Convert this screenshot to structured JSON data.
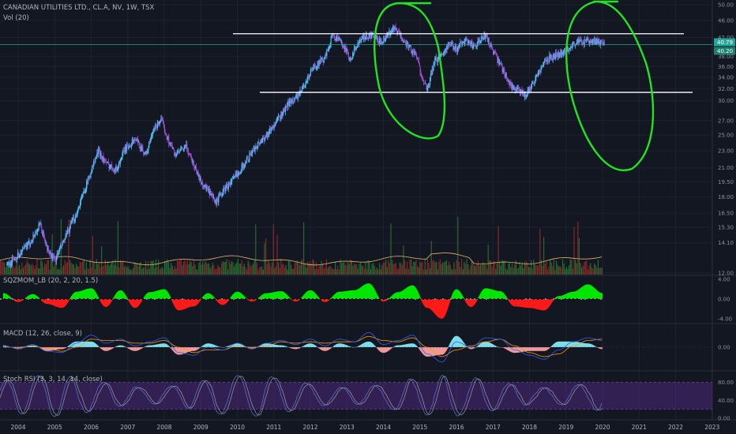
{
  "header": {
    "symbol_line": "CANADIAN UTILITIES LTD., CL.A, NV, 1W, TSX",
    "volume_label": "Vol (20)"
  },
  "price_badges": {
    "current": "40.79",
    "line_value": "40.20"
  },
  "colors": {
    "background": "#131722",
    "candle_up": "#4fc3f7",
    "candle_down": "#9c4dcc",
    "annotation_green": "#22e322",
    "line_white": "#ffffff",
    "teal_line": "#26a69a",
    "volume_up": "#2e7d32",
    "volume_down": "#a52a2a",
    "volume_ma": "#e0b46a",
    "squeeze_up": "#00e600",
    "squeeze_down": "#ff1a1a",
    "macd_line": "#2962ff",
    "signal_line": "#ff9800",
    "stoch_k": "#5b7bd5",
    "stoch_d": "#9e9e9e",
    "stoch_band": "#5c2d91"
  },
  "chart_data": [
    {
      "id": "price",
      "type": "candlestick",
      "title": "CANADIAN UTILITIES LTD., CL.A, NV, 1W, TSX",
      "x_axis_ticks": [
        "2004",
        "2005",
        "2006",
        "2007",
        "2008",
        "2009",
        "2010",
        "2011",
        "2012",
        "2013",
        "2014",
        "2015",
        "2016",
        "2017",
        "2018",
        "2019",
        "2020",
        "2021",
        "2022",
        "2023"
      ],
      "y_axis_ticks": [
        12.0,
        14.1,
        15.3,
        16.5,
        18.0,
        19.5,
        21.0,
        23.0,
        25.0,
        27.0,
        30.0,
        32.0,
        34.0,
        36.0,
        38.0,
        42.0,
        46.0,
        50.0
      ],
      "y_scale": "log",
      "x": [
        2003.7,
        2004.0,
        2004.3,
        2004.6,
        2004.8,
        2005.0,
        2005.3,
        2005.6,
        2005.9,
        2006.2,
        2006.4,
        2006.7,
        2006.9,
        2007.2,
        2007.5,
        2007.7,
        2007.9,
        2008.1,
        2008.3,
        2008.6,
        2008.8,
        2009.0,
        2009.2,
        2009.4,
        2009.6,
        2009.9,
        2010.2,
        2010.5,
        2010.8,
        2011.1,
        2011.4,
        2011.7,
        2011.9,
        2012.1,
        2012.4,
        2012.6,
        2012.9,
        2013.1,
        2013.3,
        2013.5,
        2013.7,
        2013.9,
        2014.1,
        2014.3,
        2014.6,
        2014.9,
        2015.0,
        2015.2,
        2015.4,
        2015.6,
        2015.8,
        2016.0,
        2016.2,
        2016.5,
        2016.8,
        2017.1,
        2017.3,
        2017.5,
        2017.7,
        2017.9,
        2018.1,
        2018.3,
        2018.5,
        2018.8,
        2019.0,
        2019.2,
        2019.4,
        2019.6,
        2019.9,
        2020.05
      ],
      "close": [
        12.5,
        13.2,
        14.0,
        15.5,
        13.6,
        12.8,
        14.5,
        16.5,
        19.5,
        23.0,
        21.5,
        20.8,
        23.0,
        24.5,
        22.5,
        25.5,
        27.2,
        24.5,
        22.5,
        23.5,
        21.5,
        19.5,
        18.6,
        17.4,
        18.5,
        19.8,
        21.5,
        23.5,
        25.0,
        27.0,
        29.5,
        31.0,
        33.5,
        36.0,
        37.5,
        42.5,
        40.5,
        37.0,
        41.0,
        42.0,
        42.5,
        41.0,
        42.5,
        44.0,
        41.0,
        38.0,
        35.5,
        31.5,
        37.0,
        38.5,
        40.5,
        39.5,
        41.5,
        40.0,
        42.5,
        37.5,
        35.0,
        32.5,
        31.5,
        31.0,
        33.0,
        35.5,
        37.5,
        38.5,
        39.0,
        40.8,
        41.0,
        41.0,
        41.0,
        41.0
      ],
      "horizontal_lines": [
        42.5,
        31.5
      ],
      "current_price": 40.79
    },
    {
      "id": "volume",
      "type": "bar",
      "title": "Vol (20)",
      "note": "volume histogram with 20-period moving average overlay; no values printed"
    },
    {
      "id": "squeeze",
      "type": "area",
      "title": "SQZMOM_LB (20, 2, 20, 1.5)",
      "y_axis_ticks": [
        4.0,
        0.0,
        -4.0
      ],
      "x": [
        2003.6,
        2004.0,
        2004.4,
        2004.8,
        2005.2,
        2005.6,
        2006.0,
        2006.4,
        2006.8,
        2007.2,
        2007.6,
        2008.0,
        2008.4,
        2008.8,
        2009.2,
        2009.6,
        2010.0,
        2010.4,
        2010.8,
        2011.2,
        2011.6,
        2012.0,
        2012.4,
        2012.8,
        2013.2,
        2013.6,
        2014.0,
        2014.4,
        2014.8,
        2015.2,
        2015.6,
        2016.0,
        2016.4,
        2016.8,
        2017.2,
        2017.6,
        2018.0,
        2018.4,
        2018.8,
        2019.2,
        2019.6,
        2020.0
      ],
      "values": [
        1.2,
        -0.6,
        1.0,
        -1.0,
        -1.8,
        1.5,
        2.2,
        -1.6,
        1.8,
        -1.8,
        1.4,
        2.0,
        -2.3,
        -1.5,
        1.2,
        -1.2,
        1.5,
        -0.5,
        1.2,
        1.6,
        -0.5,
        1.8,
        -0.6,
        1.5,
        1.8,
        3.2,
        -0.5,
        1.4,
        2.8,
        -1.8,
        -4.0,
        2.0,
        -1.6,
        2.2,
        1.6,
        -1.5,
        -1.8,
        -2.3,
        0.6,
        1.5,
        3.0,
        1.2
      ]
    },
    {
      "id": "macd",
      "type": "line",
      "title": "MACD (12, 26, close, 9)",
      "y_axis_ticks": [
        0.0
      ],
      "x": [
        2003.6,
        2004.0,
        2004.4,
        2004.8,
        2005.2,
        2005.6,
        2006.0,
        2006.4,
        2006.8,
        2007.2,
        2007.6,
        2008.0,
        2008.4,
        2008.8,
        2009.2,
        2009.6,
        2010.0,
        2010.4,
        2010.8,
        2011.2,
        2011.6,
        2012.0,
        2012.4,
        2012.8,
        2013.2,
        2013.6,
        2014.0,
        2014.4,
        2014.8,
        2015.2,
        2015.6,
        2016.0,
        2016.4,
        2016.8,
        2017.2,
        2017.6,
        2018.0,
        2018.4,
        2018.8,
        2019.2,
        2019.6,
        2020.0
      ],
      "series": [
        {
          "name": "MACD",
          "values": [
            0.1,
            -0.1,
            0.2,
            -0.3,
            -0.4,
            0.3,
            0.9,
            0.3,
            0.6,
            0.1,
            0.4,
            0.7,
            -0.4,
            -0.6,
            0.0,
            -0.2,
            0.3,
            -0.1,
            0.3,
            0.5,
            0.2,
            0.6,
            0.1,
            0.6,
            0.4,
            1.1,
            0.2,
            0.5,
            0.9,
            -0.5,
            -1.1,
            0.4,
            0.0,
            0.7,
            0.6,
            -0.2,
            -0.6,
            -0.9,
            -0.2,
            0.4,
            0.7,
            0.5
          ]
        },
        {
          "name": "Signal",
          "values": [
            0.0,
            0.0,
            0.1,
            -0.1,
            -0.3,
            0.0,
            0.6,
            0.5,
            0.5,
            0.3,
            0.3,
            0.5,
            0.0,
            -0.4,
            -0.2,
            -0.2,
            0.1,
            0.0,
            0.1,
            0.4,
            0.3,
            0.4,
            0.3,
            0.4,
            0.4,
            0.8,
            0.5,
            0.4,
            0.7,
            0.0,
            -0.7,
            -0.2,
            0.1,
            0.4,
            0.6,
            0.1,
            -0.4,
            -0.7,
            -0.5,
            0.1,
            0.5,
            0.6
          ]
        }
      ]
    },
    {
      "id": "stoch_rsi",
      "type": "line",
      "title": "Stoch RSI (3, 3, 14, 14, close)",
      "y_axis_ticks": [
        80.0,
        40.0,
        0.0
      ],
      "band": [
        20,
        80
      ]
    }
  ]
}
